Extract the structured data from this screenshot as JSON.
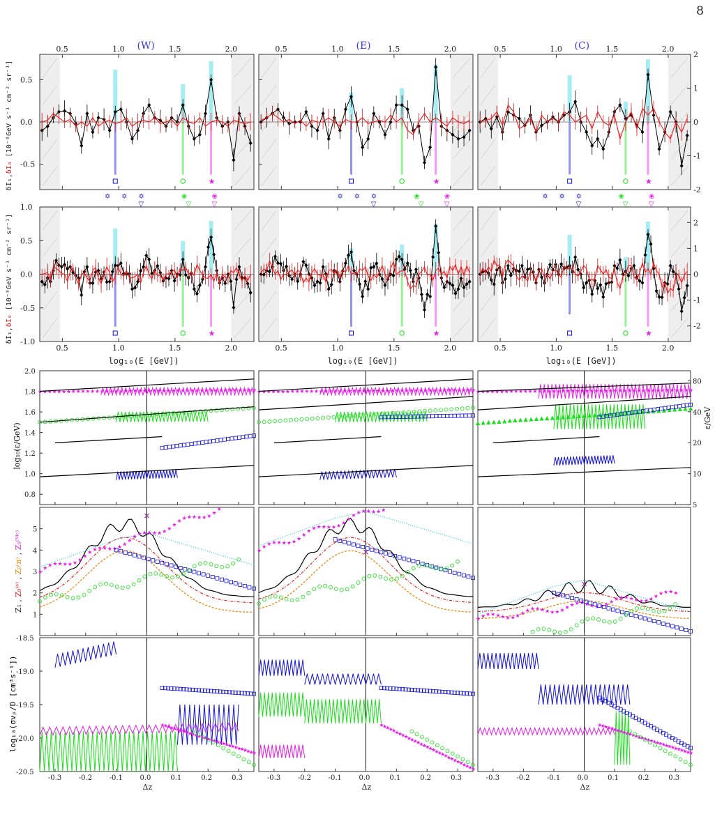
{
  "page": {
    "number": "8"
  },
  "panel_titles": [
    "(W)",
    "(E)",
    "(C)"
  ],
  "colors": {
    "black": "#000000",
    "red": "#e81c1c",
    "blue": "#1010d8",
    "green": "#18e018",
    "magenta": "#e81ce8",
    "cyan": "#8ee8f0",
    "cyan_line": "#22c8e0",
    "orange": "#f08000",
    "shade": "#eeeeee",
    "violet": "#9a3aa0"
  },
  "row_labels": {
    "dI": "δI₁,δI₀ [10⁻⁸GeV s⁻¹ cm⁻² sr⁻¹]",
    "dI1": "δI₁",
    "dI_sep": ",",
    "dI0": "δI₀",
    "dI_rest": "[10⁻⁸GeV s⁻¹ cm⁻² sr⁻¹]",
    "eps_left": "log₁₀(ε/GeV)",
    "eps_right": "ε/GeV",
    "z": "Z₁ , Z_g^(e) , Z_g^(π) , Z_g^(MC)",
    "z_parts": [
      "Z₁",
      " , ",
      "Z₉⁽ᵉ⁾",
      " , ",
      "Z₉⁽π⁾",
      " , ",
      "Z₉⁽ᴹᶜ⁾"
    ],
    "sigma": "log₁₀(σvₚ/D [cm³s⁻¹])"
  },
  "x_axes": {
    "energy_label": "log₁₀(E [GeV])",
    "dz_label": "Δz",
    "energy_ticks": [
      "0.5",
      "1.0",
      "1.5",
      "2.0"
    ],
    "energy_tick_values": [
      0.5,
      1.0,
      1.5,
      2.0
    ],
    "energy_range": [
      0.3,
      2.2
    ],
    "dz_ticks": [
      "-0.3",
      "-0.2",
      "-0.1",
      "0.0",
      "0.1",
      "0.2",
      "0.3"
    ],
    "dz_tick_values": [
      -0.3,
      -0.2,
      -0.1,
      0.0,
      0.1,
      0.2,
      0.3
    ],
    "dz_range": [
      -0.35,
      0.35
    ]
  },
  "y_axes": {
    "row1": [
      {
        "range": [
          -0.8,
          0.8
        ],
        "ticks": [
          "-0.5",
          "0.0",
          "0.5"
        ],
        "values": [
          -0.5,
          0,
          0.5
        ]
      },
      {
        "range": [
          -0.8,
          0.8
        ],
        "ticks": [
          "-0.5",
          "0.0",
          "0.5"
        ],
        "values": [
          -0.5,
          0,
          0.5
        ]
      },
      {
        "range": [
          -2,
          2
        ],
        "ticks": [
          "-2",
          "-1",
          "0",
          "1",
          "2"
        ],
        "values": [
          -2,
          -1,
          0,
          1,
          2
        ]
      }
    ],
    "row2": [
      {
        "range": [
          -1.0,
          1.0
        ],
        "ticks": [
          "-1.0",
          "-0.5",
          "0.0",
          "0.5",
          "1.0"
        ],
        "values": [
          -1,
          -0.5,
          0,
          0.5,
          1
        ]
      },
      {
        "range": [
          -1.0,
          1.0
        ],
        "ticks": [],
        "values": []
      },
      {
        "range": [
          -2.6,
          2.6
        ],
        "ticks": [
          "-2",
          "-1",
          "0",
          "1",
          "2"
        ],
        "values": [
          -2,
          -1,
          0,
          1,
          2
        ]
      }
    ],
    "row3": {
      "range": [
        0.7,
        2.0
      ],
      "ticks": [
        "0.8",
        "1.0",
        "1.2",
        "1.4",
        "1.6",
        "1.8",
        "2.0"
      ],
      "values": [
        0.8,
        1.0,
        1.2,
        1.4,
        1.6,
        1.8,
        2.0
      ],
      "right_ticks": [
        "5",
        "10",
        "20",
        "40",
        "80"
      ],
      "right_values": [
        5,
        10,
        20,
        40,
        80
      ]
    },
    "row4": {
      "range": [
        0,
        6
      ],
      "ticks": [
        "1",
        "2",
        "3",
        "4",
        "5"
      ],
      "values": [
        1,
        2,
        3,
        4,
        5
      ]
    },
    "row5": {
      "range": [
        -20.5,
        -18.5
      ],
      "ticks": [
        "-18.5",
        "-19.0",
        "-19.5",
        "-20.0",
        "-20.5"
      ],
      "values": [
        -18.5,
        -19.0,
        -19.5,
        -20.0,
        -20.5
      ]
    }
  },
  "chart_data": [
    {
      "type": "line",
      "title": "(W)",
      "xlabel": "log10(E [GeV])",
      "ylabel": "δI1, δI0 [10^-8 GeV s^-1 cm^-2 sr^-1]",
      "ylim": [
        -0.8,
        0.8
      ],
      "x": [
        0.32,
        0.37,
        0.42,
        0.47,
        0.52,
        0.57,
        0.62,
        0.67,
        0.72,
        0.77,
        0.82,
        0.87,
        0.92,
        0.97,
        1.02,
        1.07,
        1.12,
        1.17,
        1.22,
        1.27,
        1.32,
        1.37,
        1.42,
        1.47,
        1.52,
        1.57,
        1.62,
        1.67,
        1.72,
        1.77,
        1.82,
        1.87,
        1.92,
        1.97,
        2.02,
        2.07,
        2.12,
        2.17
      ],
      "series": [
        {
          "name": "δI1",
          "values": [
            -0.1,
            -0.05,
            0.05,
            0.12,
            0.13,
            0.1,
            -0.02,
            -0.28,
            0.1,
            -0.12,
            0.05,
            0.03,
            -0.1,
            0.12,
            0.15,
            0.0,
            -0.2,
            -0.1,
            0.1,
            0.2,
            0.05,
            0.02,
            -0.05,
            0.05,
            0.0,
            0.2,
            -0.05,
            -0.2,
            -0.15,
            0.1,
            0.5,
            0.05,
            -0.05,
            0.0,
            -0.45,
            0.1,
            -0.05,
            -0.25
          ]
        },
        {
          "name": "δI0",
          "values": [
            0.0,
            0.02,
            0.1,
            0.05,
            0.0,
            0.03,
            -0.05,
            0.0,
            -0.05,
            0.05,
            -0.05,
            0.0,
            0.02,
            -0.02,
            0.0,
            0.05,
            -0.05,
            0.0,
            0.02,
            0.0,
            0.05,
            -0.02,
            0.0,
            0.03,
            -0.05,
            0.05,
            0.0,
            -0.02,
            0.05,
            -0.05,
            0.0,
            0.02,
            0.0,
            -0.05,
            0.02,
            0.0,
            -0.02,
            0.0
          ]
        }
      ],
      "markers": [
        {
          "symbol": "square",
          "x": 0.97,
          "peak": 0.62
        },
        {
          "symbol": "circle",
          "x": 1.57,
          "peak": 0.45
        },
        {
          "symbol": "star",
          "x": 1.82,
          "peak": 0.72
        }
      ]
    },
    {
      "type": "line",
      "title": "(E)",
      "xlabel": "log10(E [GeV])",
      "ylim": [
        -0.8,
        0.8
      ],
      "x": [
        0.32,
        0.37,
        0.42,
        0.47,
        0.52,
        0.57,
        0.62,
        0.67,
        0.72,
        0.77,
        0.82,
        0.87,
        0.92,
        0.97,
        1.02,
        1.07,
        1.12,
        1.17,
        1.22,
        1.27,
        1.32,
        1.37,
        1.42,
        1.47,
        1.52,
        1.57,
        1.62,
        1.67,
        1.72,
        1.77,
        1.82,
        1.87,
        1.92,
        1.97,
        2.02,
        2.07,
        2.12,
        2.17
      ],
      "series": [
        {
          "name": "δI1",
          "values": [
            0.0,
            0.05,
            0.1,
            0.15,
            0.05,
            -0.02,
            0.0,
            0.0,
            0.12,
            -0.05,
            -0.1,
            0.1,
            -0.2,
            0.05,
            -0.1,
            0.15,
            0.3,
            0.0,
            -0.3,
            -0.2,
            0.1,
            0.0,
            -0.15,
            0.0,
            0.2,
            0.2,
            0.15,
            -0.1,
            -0.05,
            -0.48,
            -0.3,
            0.65,
            -0.05,
            -0.1,
            -0.15,
            -0.2,
            -0.18,
            -0.1
          ]
        },
        {
          "name": "δI0",
          "values": [
            0.02,
            0.05,
            0.1,
            0.05,
            0.0,
            0.03,
            -0.02,
            0.02,
            -0.05,
            0.02,
            0.0,
            0.0,
            0.05,
            0.0,
            -0.05,
            0.03,
            0.0,
            0.0,
            0.05,
            -0.02,
            0.0,
            0.02,
            0.0,
            0.08,
            0.0,
            0.05,
            -0.1,
            -0.15,
            0.0,
            0.1,
            0.0,
            0.05,
            0.0,
            -0.05,
            0.05,
            0.0,
            -0.02,
            0.02
          ]
        }
      ],
      "markers": [
        {
          "symbol": "square",
          "x": 1.12,
          "peak": 0.35
        },
        {
          "symbol": "circle",
          "x": 1.57,
          "peak": 0.4
        },
        {
          "symbol": "star",
          "x": 1.87,
          "peak": 0.68
        }
      ]
    },
    {
      "type": "line",
      "title": "(C)",
      "xlabel": "log10(E [GeV])",
      "ylim": [
        -2,
        2
      ],
      "x": [
        0.32,
        0.37,
        0.42,
        0.47,
        0.52,
        0.57,
        0.62,
        0.67,
        0.72,
        0.77,
        0.82,
        0.87,
        0.92,
        0.97,
        1.02,
        1.07,
        1.12,
        1.17,
        1.22,
        1.27,
        1.32,
        1.37,
        1.42,
        1.47,
        1.52,
        1.57,
        1.62,
        1.67,
        1.72,
        1.77,
        1.82,
        1.87,
        1.92,
        1.97,
        2.02,
        2.07,
        2.12,
        2.17
      ],
      "series": [
        {
          "name": "δI1",
          "values": [
            0.0,
            0.1,
            -0.2,
            0.15,
            -0.3,
            0.3,
            0.2,
            0.1,
            -0.1,
            0.2,
            -0.3,
            -0.1,
            0.0,
            0.15,
            0.0,
            0.2,
            0.3,
            0.6,
            0.0,
            -0.3,
            -0.7,
            -0.5,
            -0.8,
            -0.3,
            0.3,
            0.5,
            0.1,
            0.2,
            -0.1,
            -0.3,
            1.4,
            0.2,
            -0.8,
            -0.3,
            0.3,
            0.0,
            -1.3,
            -0.4
          ]
        },
        {
          "name": "δI0",
          "values": [
            0.0,
            0.05,
            0.1,
            0.3,
            -0.1,
            0.5,
            0.3,
            -0.2,
            -0.1,
            0.1,
            -0.3,
            0.2,
            0.0,
            0.1,
            0.0,
            0.3,
            0.2,
            0.0,
            0.1,
            0.2,
            -0.2,
            0.3,
            0.0,
            -0.1,
            0.2,
            -0.5,
            0.0,
            0.3,
            -0.2,
            0.4,
            0.2,
            0.4,
            0.0,
            -0.3,
            -0.5,
            0.0,
            -0.3,
            0.1
          ]
        }
      ],
      "markers": [
        {
          "symbol": "square",
          "x": 1.12,
          "peak": 1.38,
          "band_low": -1.55
        },
        {
          "symbol": "circle",
          "x": 1.62,
          "peak": 0.6
        },
        {
          "symbol": "star",
          "x": 1.82,
          "peak": 1.85
        }
      ]
    }
  ]
}
